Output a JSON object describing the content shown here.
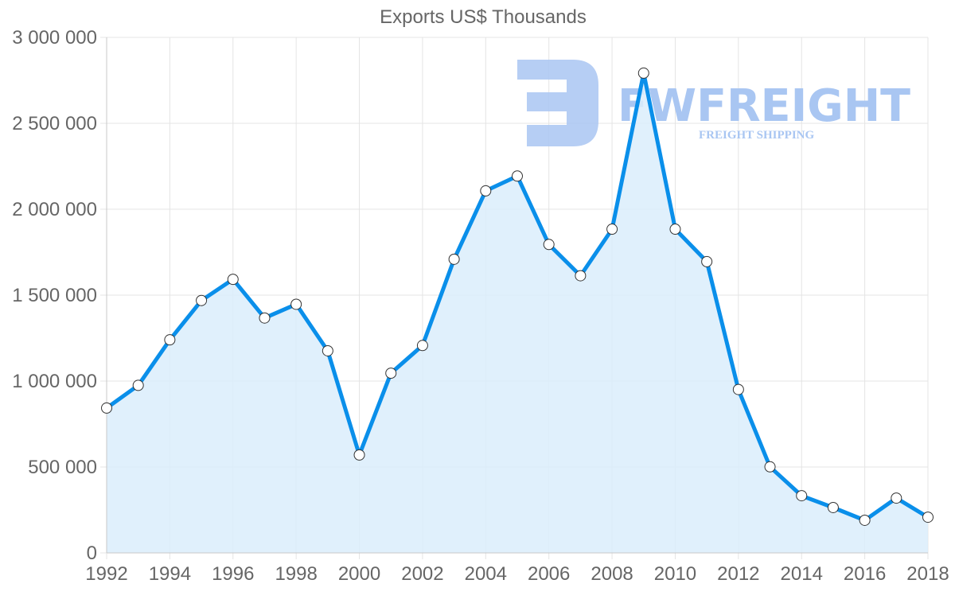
{
  "chart_data": {
    "type": "area",
    "title": "Exports US$ Thousands",
    "xlabel": "",
    "ylabel": "",
    "x": [
      1992,
      1993,
      1994,
      1995,
      1996,
      1997,
      1998,
      1999,
      2000,
      2001,
      2002,
      2003,
      2004,
      2005,
      2006,
      2007,
      2008,
      2009,
      2010,
      2011,
      2012,
      2013,
      2014,
      2015,
      2016,
      2017,
      2018
    ],
    "series": [
      {
        "name": "Exports US$ Thousands",
        "values": [
          843000,
          975000,
          1240000,
          1469000,
          1592000,
          1367000,
          1447000,
          1176000,
          570000,
          1046000,
          1207000,
          1709000,
          2107000,
          2193000,
          1795000,
          1613000,
          1884000,
          2792000,
          1884000,
          1695000,
          951000,
          501000,
          333000,
          264000,
          190000,
          319000,
          208000
        ]
      }
    ],
    "ylim": [
      0,
      3000000
    ],
    "y_ticks": [
      "0",
      "500 000",
      "1 000 000",
      "1 500 000",
      "2 000 000",
      "2 500 000",
      "3 000 000"
    ],
    "x_ticks": [
      "1992",
      "1994",
      "1996",
      "1998",
      "2000",
      "2002",
      "2004",
      "2006",
      "2008",
      "2010",
      "2012",
      "2014",
      "2016",
      "2018"
    ],
    "grid": true,
    "legend": "none",
    "colors": {
      "line": "#0a8fea",
      "fill": "#dbedfc",
      "point_fill": "#ffffff",
      "point_stroke": "#333333",
      "grid": "#e4e4e4",
      "axis_text": "#666666"
    }
  },
  "watermark": {
    "brand": "FWFREIGHT",
    "tagline": "FREIGHT SHIPPING",
    "color": "#a9c6f2"
  }
}
